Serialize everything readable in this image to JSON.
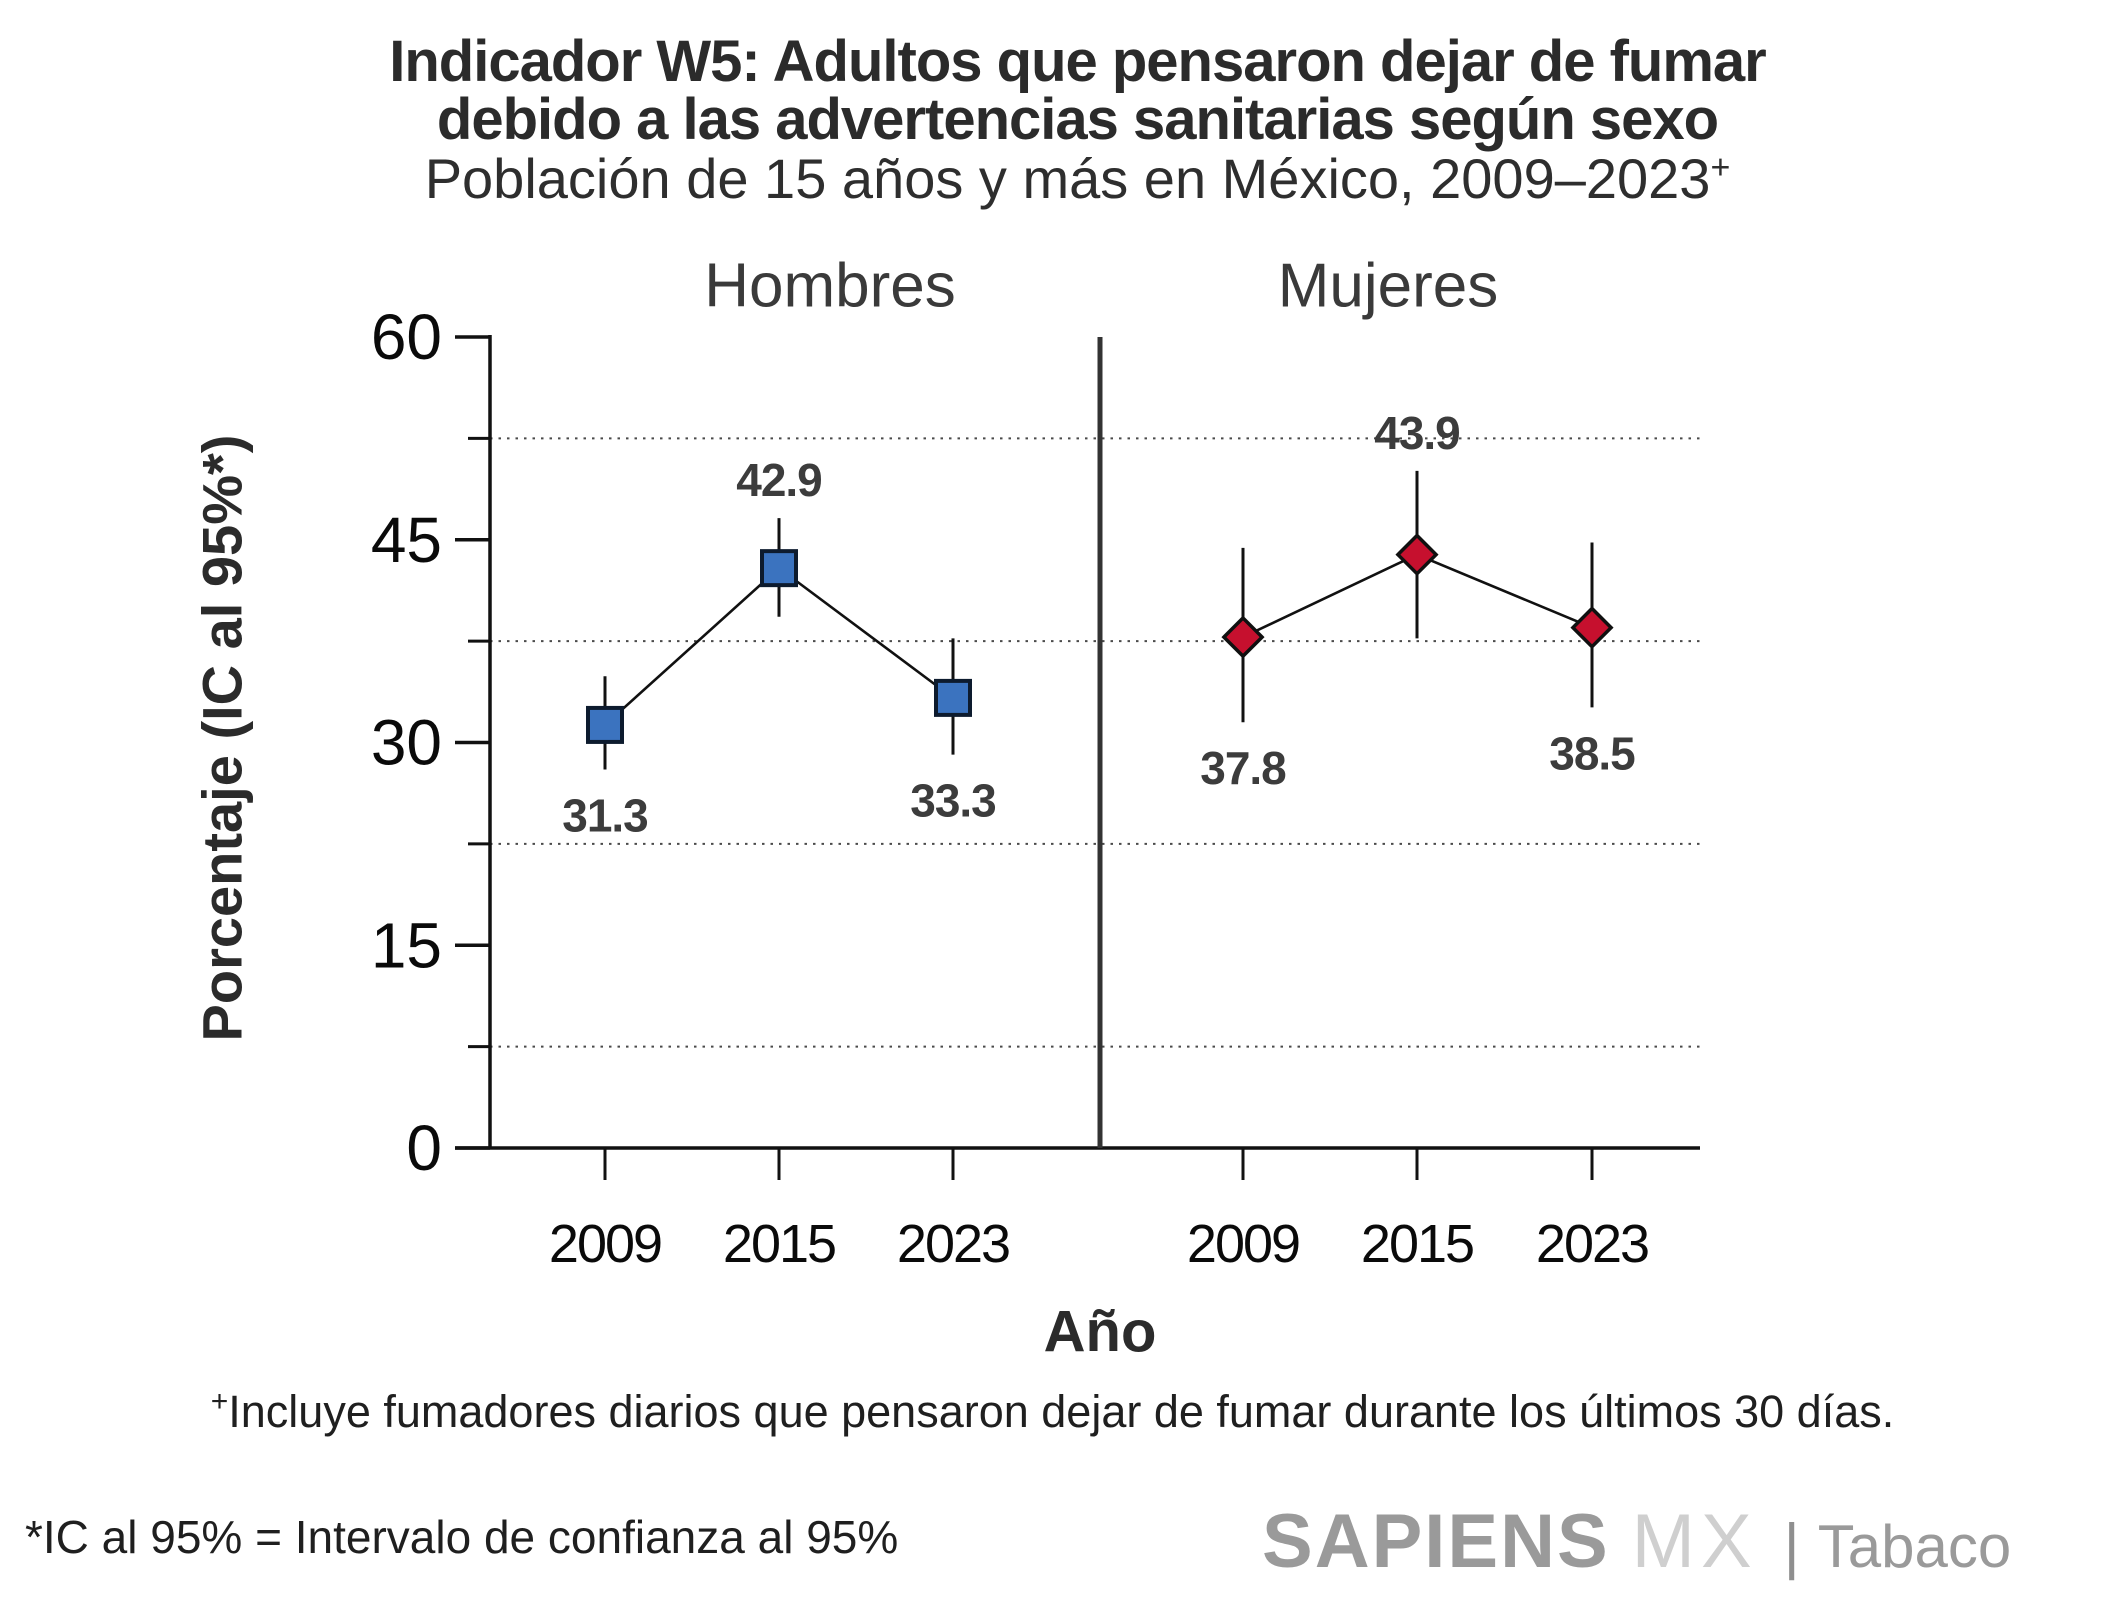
{
  "header": {
    "title_line1": "Indicador W5: Adultos que pensaron dejar de fumar",
    "title_line2": "debido a las advertencias sanitarias según sexo",
    "subtitle": "Población de 15 años y más en México, 2009–2023",
    "subtitle_sup": "+"
  },
  "chart_data": {
    "type": "line",
    "categories": [
      "2009",
      "2015",
      "2023"
    ],
    "xlabel": "Año",
    "ylabel": "Porcentaje (IC al 95%*)",
    "ylim": [
      0,
      60
    ],
    "yticks": [
      0,
      15,
      30,
      45,
      60
    ],
    "gridlines": [
      7.5,
      22.5,
      37.5,
      52.5
    ],
    "grid_style": "dotted",
    "panels": [
      {
        "label": "Hombres",
        "marker": "square",
        "color": "#3B73BF",
        "edge_color": "#0d1b2e",
        "points": [
          {
            "year": "2009",
            "value": 31.3,
            "ci": [
              28.0,
              34.9
            ],
            "label_pos": "below"
          },
          {
            "year": "2015",
            "value": 42.9,
            "ci": [
              39.3,
              46.6
            ],
            "label_pos": "above"
          },
          {
            "year": "2023",
            "value": 33.3,
            "ci": [
              29.1,
              37.7
            ],
            "label_pos": "below"
          }
        ]
      },
      {
        "label": "Mujeres",
        "marker": "diamond",
        "color": "#C6102E",
        "edge_color": "#101010",
        "points": [
          {
            "year": "2009",
            "value": 37.8,
            "ci": [
              31.5,
              44.4
            ],
            "label_pos": "below"
          },
          {
            "year": "2015",
            "value": 43.9,
            "ci": [
              37.7,
              50.1
            ],
            "label_pos": "above"
          },
          {
            "year": "2023",
            "value": 38.5,
            "ci": [
              32.6,
              44.8
            ],
            "label_pos": "below"
          }
        ]
      }
    ]
  },
  "footnotes": {
    "note1_sup": "+",
    "note1": "Incluye fumadores diarios que pensaron dejar de fumar durante los últimos 30 días.",
    "note2": "*IC al 95% = Intervalo de confianza al 95%"
  },
  "logo": {
    "part1": "SAPIENS",
    "part2": "MX",
    "separator": "|",
    "part3": "Tabaco"
  }
}
